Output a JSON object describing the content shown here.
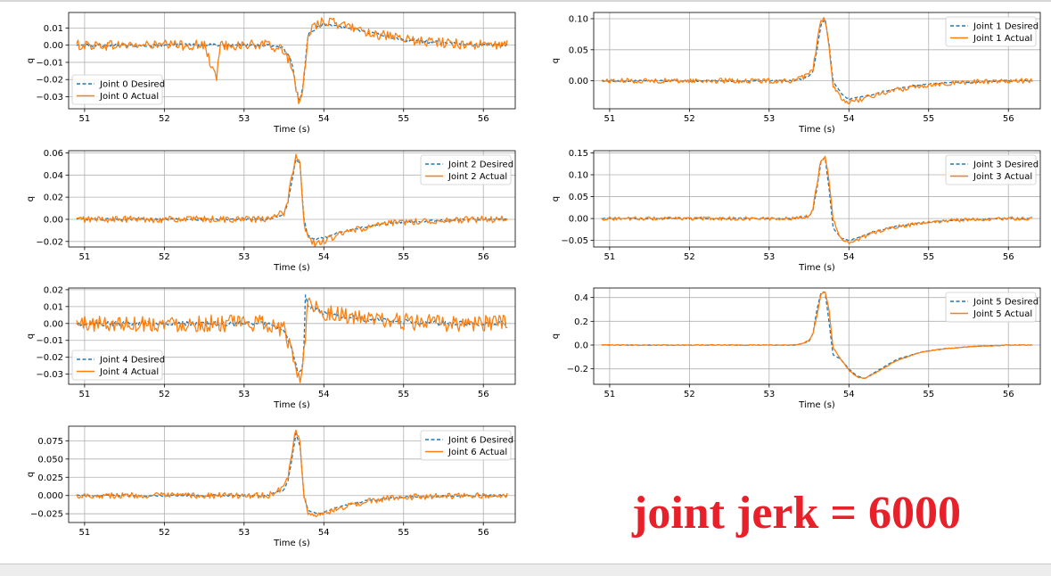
{
  "annotation": "joint jerk = 6000",
  "colors": {
    "desired": "#1f77b4",
    "actual": "#ff7f0e",
    "annotation": "#e8202a"
  },
  "chart_data": [
    {
      "type": "line",
      "xlabel": "Time (s)",
      "ylabel": "q",
      "xlim": [
        50.8,
        56.4
      ],
      "xticks": [
        51,
        52,
        53,
        54,
        55,
        56
      ],
      "ylim": [
        -0.037,
        0.019
      ],
      "yticks": [
        0.01,
        0.0,
        -0.01,
        -0.02,
        -0.03
      ],
      "ytick_labels": [
        "0.01",
        "0.00",
        "−0.01",
        "−0.02",
        "−0.03"
      ],
      "grid": true,
      "legend_loc": "lower-left",
      "series": [
        {
          "name": "Joint 0 Desired",
          "style": "dashed",
          "color": "#1f77b4",
          "x": [
            50.9,
            51.5,
            52.0,
            52.5,
            53.0,
            53.3,
            53.5,
            53.6,
            53.65,
            53.7,
            53.75,
            53.8,
            53.9,
            54.0,
            54.2,
            54.4,
            54.6,
            54.8,
            55.0,
            55.3,
            55.6,
            56.0,
            56.3
          ],
          "y": [
            0.0,
            0.0,
            0.0,
            0.0,
            0.0,
            0.0,
            -0.002,
            -0.01,
            -0.025,
            -0.033,
            -0.02,
            0.006,
            0.01,
            0.012,
            0.011,
            0.009,
            0.007,
            0.005,
            0.003,
            0.002,
            0.001,
            0.0,
            0.0
          ]
        },
        {
          "name": "Joint 0 Actual",
          "style": "solid",
          "color": "#ff7f0e",
          "x": [
            50.9,
            51.5,
            52.0,
            52.5,
            52.65,
            52.7,
            53.0,
            53.3,
            53.5,
            53.6,
            53.65,
            53.7,
            53.75,
            53.8,
            53.9,
            54.0,
            54.2,
            54.4,
            54.6,
            54.8,
            55.0,
            55.3,
            55.6,
            56.0,
            56.3
          ],
          "y": [
            0.0,
            0.0,
            0.0,
            0.0,
            -0.02,
            0.0,
            0.0,
            0.0,
            -0.003,
            -0.012,
            -0.028,
            -0.035,
            -0.02,
            0.007,
            0.012,
            0.014,
            0.012,
            0.01,
            0.007,
            0.005,
            0.003,
            0.002,
            0.001,
            0.0,
            0.0
          ],
          "noise": 0.003
        }
      ]
    },
    {
      "type": "line",
      "xlabel": "Time (s)",
      "ylabel": "q",
      "xlim": [
        50.8,
        56.4
      ],
      "xticks": [
        51,
        52,
        53,
        54,
        55,
        56
      ],
      "ylim": [
        -0.045,
        0.11
      ],
      "yticks": [
        0.1,
        0.05,
        0.0
      ],
      "ytick_labels": [
        "0.10",
        "0.05",
        "0.00"
      ],
      "grid": true,
      "legend_loc": "upper-right",
      "series": [
        {
          "name": "Joint 1 Desired",
          "style": "dashed",
          "color": "#1f77b4",
          "x": [
            50.9,
            51.5,
            52.0,
            52.5,
            53.0,
            53.3,
            53.4,
            53.5,
            53.55,
            53.6,
            53.65,
            53.7,
            53.75,
            53.8,
            53.9,
            54.0,
            54.2,
            54.5,
            54.8,
            55.1,
            55.5,
            56.0,
            56.3
          ],
          "y": [
            0.0,
            0.0,
            0.0,
            0.0,
            0.0,
            0.0,
            0.003,
            0.008,
            0.015,
            0.05,
            0.09,
            0.1,
            0.06,
            0.0,
            -0.02,
            -0.03,
            -0.025,
            -0.015,
            -0.008,
            -0.004,
            -0.002,
            0.0,
            0.0
          ]
        },
        {
          "name": "Joint 1 Actual",
          "style": "solid",
          "color": "#ff7f0e",
          "x": [
            50.9,
            51.5,
            52.0,
            52.5,
            53.0,
            53.3,
            53.4,
            53.5,
            53.55,
            53.6,
            53.65,
            53.7,
            53.75,
            53.8,
            53.9,
            54.0,
            54.2,
            54.5,
            54.8,
            55.1,
            55.5,
            56.0,
            56.3
          ],
          "y": [
            0.0,
            0.0,
            0.0,
            0.0,
            0.0,
            0.0,
            0.004,
            0.01,
            0.02,
            0.06,
            0.1,
            0.098,
            0.055,
            -0.01,
            -0.028,
            -0.035,
            -0.028,
            -0.017,
            -0.01,
            -0.005,
            -0.002,
            0.0,
            0.0
          ],
          "noise": 0.004
        }
      ]
    },
    {
      "type": "line",
      "xlabel": "Time (s)",
      "ylabel": "q",
      "xlim": [
        50.8,
        56.4
      ],
      "xticks": [
        51,
        52,
        53,
        54,
        55,
        56
      ],
      "ylim": [
        -0.025,
        0.062
      ],
      "yticks": [
        0.06,
        0.04,
        0.02,
        0.0,
        -0.02
      ],
      "ytick_labels": [
        "0.06",
        "0.04",
        "0.02",
        "0.00",
        "−0.02"
      ],
      "grid": true,
      "legend_loc": "upper-right",
      "series": [
        {
          "name": "Joint 2 Desired",
          "style": "dashed",
          "color": "#1f77b4",
          "x": [
            50.9,
            51.5,
            52.0,
            52.5,
            53.0,
            53.3,
            53.5,
            53.55,
            53.6,
            53.65,
            53.7,
            53.75,
            53.8,
            53.9,
            54.0,
            54.2,
            54.5,
            54.8,
            55.1,
            55.5,
            56.0,
            56.3
          ],
          "y": [
            0.0,
            0.0,
            0.0,
            0.0,
            0.0,
            0.0,
            0.005,
            0.015,
            0.035,
            0.055,
            0.05,
            0.0,
            -0.015,
            -0.018,
            -0.017,
            -0.012,
            -0.007,
            -0.004,
            -0.002,
            -0.001,
            0.0,
            0.0
          ]
        },
        {
          "name": "Joint 2 Actual",
          "style": "solid",
          "color": "#ff7f0e",
          "x": [
            50.9,
            51.5,
            52.0,
            52.5,
            53.0,
            53.3,
            53.5,
            53.55,
            53.6,
            53.65,
            53.7,
            53.75,
            53.8,
            53.9,
            54.0,
            54.2,
            54.5,
            54.8,
            55.1,
            55.5,
            56.0,
            56.3
          ],
          "y": [
            0.0,
            0.0,
            0.0,
            0.0,
            0.0,
            0.0,
            0.006,
            0.018,
            0.04,
            0.058,
            0.052,
            -0.002,
            -0.018,
            -0.022,
            -0.02,
            -0.013,
            -0.008,
            -0.004,
            -0.002,
            -0.001,
            0.0,
            0.0
          ],
          "noise": 0.003
        }
      ]
    },
    {
      "type": "line",
      "xlabel": "Time (s)",
      "ylabel": "q",
      "xlim": [
        50.8,
        56.4
      ],
      "xticks": [
        51,
        52,
        53,
        54,
        55,
        56
      ],
      "ylim": [
        -0.065,
        0.155
      ],
      "yticks": [
        0.15,
        0.1,
        0.05,
        0.0,
        -0.05
      ],
      "ytick_labels": [
        "0.15",
        "0.10",
        "0.05",
        "0.00",
        "−0.05"
      ],
      "grid": true,
      "legend_loc": "upper-right",
      "series": [
        {
          "name": "Joint 3 Desired",
          "style": "dashed",
          "color": "#1f77b4",
          "x": [
            50.9,
            51.5,
            52.0,
            52.5,
            53.0,
            53.3,
            53.5,
            53.55,
            53.6,
            53.65,
            53.7,
            53.75,
            53.8,
            53.9,
            54.0,
            54.1,
            54.3,
            54.6,
            54.9,
            55.2,
            55.6,
            56.0,
            56.3
          ],
          "y": [
            0.0,
            0.0,
            0.0,
            0.0,
            0.0,
            0.0,
            0.005,
            0.02,
            0.07,
            0.13,
            0.14,
            0.07,
            -0.02,
            -0.045,
            -0.05,
            -0.045,
            -0.03,
            -0.018,
            -0.01,
            -0.005,
            -0.002,
            0.0,
            0.0
          ]
        },
        {
          "name": "Joint 3 Actual",
          "style": "solid",
          "color": "#ff7f0e",
          "x": [
            50.9,
            51.5,
            52.0,
            52.5,
            53.0,
            53.3,
            53.5,
            53.55,
            53.6,
            53.65,
            53.7,
            53.75,
            53.8,
            53.9,
            54.0,
            54.1,
            54.3,
            54.6,
            54.9,
            55.2,
            55.6,
            56.0,
            56.3
          ],
          "y": [
            0.0,
            0.0,
            0.0,
            0.0,
            0.0,
            0.0,
            0.006,
            0.025,
            0.08,
            0.135,
            0.14,
            0.09,
            0.0,
            -0.045,
            -0.055,
            -0.05,
            -0.032,
            -0.019,
            -0.011,
            -0.005,
            -0.002,
            0.0,
            0.0
          ],
          "noise": 0.004
        }
      ]
    },
    {
      "type": "line",
      "xlabel": "Time (s)",
      "ylabel": "q",
      "xlim": [
        50.8,
        56.4
      ],
      "xticks": [
        51,
        52,
        53,
        54,
        55,
        56
      ],
      "ylim": [
        -0.036,
        0.021
      ],
      "yticks": [
        0.02,
        0.01,
        0.0,
        -0.01,
        -0.02,
        -0.03
      ],
      "ytick_labels": [
        "0.02",
        "0.01",
        "0.00",
        "−0.01",
        "−0.02",
        "−0.03"
      ],
      "grid": true,
      "legend_loc": "lower-left",
      "series": [
        {
          "name": "Joint 4 Desired",
          "style": "dashed",
          "color": "#1f77b4",
          "x": [
            50.9,
            51.5,
            52.0,
            52.5,
            53.0,
            53.3,
            53.5,
            53.6,
            53.65,
            53.7,
            53.75,
            53.76,
            53.8,
            53.9,
            54.0,
            54.3,
            54.6,
            55.0,
            55.5,
            56.0,
            56.3
          ],
          "y": [
            0.0,
            0.0,
            0.0,
            0.0,
            0.0,
            0.0,
            -0.004,
            -0.015,
            -0.025,
            -0.03,
            -0.02,
            0.019,
            0.01,
            0.008,
            0.006,
            0.004,
            0.002,
            0.001,
            0.0,
            0.0,
            0.0
          ]
        },
        {
          "name": "Joint 4 Actual",
          "style": "solid",
          "color": "#ff7f0e",
          "x": [
            50.9,
            51.5,
            52.0,
            52.5,
            53.0,
            53.3,
            53.5,
            53.6,
            53.65,
            53.7,
            53.75,
            53.8,
            53.85,
            53.9,
            54.0,
            54.3,
            54.6,
            55.0,
            55.5,
            56.0,
            56.3
          ],
          "y": [
            0.0,
            0.0,
            0.0,
            0.0,
            0.0,
            0.0,
            -0.004,
            -0.017,
            -0.027,
            -0.033,
            -0.018,
            0.015,
            0.012,
            0.009,
            0.007,
            0.004,
            0.002,
            0.001,
            0.0,
            0.0,
            0.0
          ],
          "noise": 0.005
        }
      ]
    },
    {
      "type": "line",
      "xlabel": "Time (s)",
      "ylabel": "q",
      "xlim": [
        50.8,
        56.4
      ],
      "xticks": [
        51,
        52,
        53,
        54,
        55,
        56
      ],
      "ylim": [
        -0.33,
        0.48
      ],
      "yticks": [
        0.4,
        0.2,
        0.0,
        -0.2
      ],
      "ytick_labels": [
        "0.4",
        "0.2",
        "0.0",
        "−0.2"
      ],
      "grid": true,
      "legend_loc": "upper-right",
      "series": [
        {
          "name": "Joint 5 Desired",
          "style": "dashed",
          "color": "#1f77b4",
          "x": [
            50.9,
            51.5,
            52.0,
            52.5,
            53.0,
            53.3,
            53.4,
            53.5,
            53.55,
            53.6,
            53.65,
            53.7,
            53.75,
            53.8,
            53.9,
            54.0,
            54.1,
            54.2,
            54.4,
            54.6,
            54.9,
            55.2,
            55.6,
            56.0,
            56.3
          ],
          "y": [
            0.0,
            0.0,
            0.0,
            0.0,
            0.0,
            0.0,
            0.01,
            0.03,
            0.1,
            0.3,
            0.44,
            0.45,
            0.2,
            -0.08,
            -0.12,
            -0.2,
            -0.26,
            -0.28,
            -0.2,
            -0.12,
            -0.06,
            -0.03,
            -0.01,
            0.0,
            0.0
          ]
        },
        {
          "name": "Joint 5 Actual",
          "style": "solid",
          "color": "#ff7f0e",
          "x": [
            50.9,
            51.5,
            52.0,
            52.5,
            53.0,
            53.3,
            53.4,
            53.5,
            53.55,
            53.6,
            53.65,
            53.7,
            53.75,
            53.8,
            53.9,
            54.0,
            54.1,
            54.2,
            54.4,
            54.6,
            54.9,
            55.2,
            55.6,
            56.0,
            56.3
          ],
          "y": [
            0.0,
            0.0,
            0.0,
            0.0,
            0.0,
            0.0,
            0.01,
            0.04,
            0.1,
            0.25,
            0.43,
            0.45,
            0.3,
            -0.02,
            -0.12,
            -0.21,
            -0.27,
            -0.28,
            -0.21,
            -0.13,
            -0.06,
            -0.03,
            -0.01,
            0.0,
            0.0
          ],
          "noise": 0.004
        }
      ]
    },
    {
      "type": "line",
      "xlabel": "Time (s)",
      "ylabel": "q",
      "xlim": [
        50.8,
        56.4
      ],
      "xticks": [
        51,
        52,
        53,
        54,
        55,
        56
      ],
      "ylim": [
        -0.037,
        0.095
      ],
      "yticks": [
        0.075,
        0.05,
        0.025,
        0.0,
        -0.025
      ],
      "ytick_labels": [
        "0.075",
        "0.050",
        "0.025",
        "0.000",
        "−0.025"
      ],
      "grid": true,
      "legend_loc": "upper-right",
      "series": [
        {
          "name": "Joint 6 Desired",
          "style": "dashed",
          "color": "#1f77b4",
          "x": [
            50.9,
            51.5,
            52.0,
            52.5,
            53.0,
            53.3,
            53.5,
            53.55,
            53.6,
            53.65,
            53.7,
            53.75,
            53.8,
            53.9,
            54.0,
            54.2,
            54.5,
            54.8,
            55.1,
            55.5,
            56.0,
            56.3
          ],
          "y": [
            0.0,
            0.0,
            0.0,
            0.0,
            0.0,
            0.0,
            0.008,
            0.02,
            0.05,
            0.085,
            0.07,
            0.0,
            -0.02,
            -0.025,
            -0.023,
            -0.015,
            -0.008,
            -0.004,
            -0.002,
            -0.001,
            0.0,
            0.0
          ]
        },
        {
          "name": "Joint 6 Actual",
          "style": "solid",
          "color": "#ff7f0e",
          "x": [
            50.9,
            51.5,
            52.0,
            52.5,
            53.0,
            53.3,
            53.5,
            53.55,
            53.6,
            53.65,
            53.7,
            53.75,
            53.8,
            53.9,
            54.0,
            54.2,
            54.5,
            54.8,
            55.1,
            55.5,
            56.0,
            56.3
          ],
          "y": [
            0.0,
            0.0,
            0.0,
            0.0,
            0.0,
            0.0,
            0.01,
            0.025,
            0.06,
            0.09,
            0.072,
            0.0,
            -0.022,
            -0.028,
            -0.026,
            -0.017,
            -0.009,
            -0.004,
            -0.002,
            -0.001,
            0.0,
            0.0
          ],
          "noise": 0.004
        }
      ]
    }
  ]
}
